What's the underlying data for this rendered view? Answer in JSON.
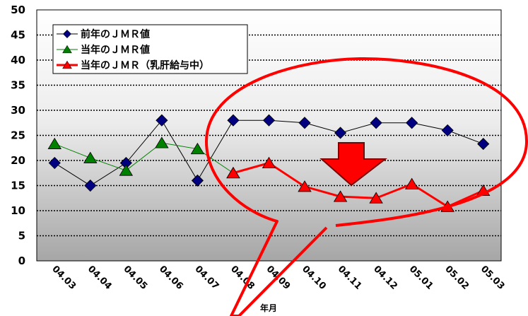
{
  "chart_data": {
    "type": "line",
    "categories": [
      "04.03",
      "04.04",
      "04.05",
      "04.06",
      "04.07",
      "04.08",
      "04.09",
      "04.10",
      "04.11",
      "04.12",
      "05.01",
      "05.02",
      "05.03"
    ],
    "xlabel": "年月",
    "ylabel": "",
    "ylim": [
      0,
      50
    ],
    "yticks": [
      0,
      5,
      10,
      15,
      20,
      25,
      30,
      35,
      40,
      45,
      50
    ],
    "grid": true,
    "legend_position": "top-left",
    "series": [
      {
        "name": "前年のＪＭＲ値",
        "color": "#000080",
        "marker": "diamond",
        "values": [
          19.5,
          15,
          19.5,
          28,
          16,
          28,
          28,
          27.5,
          25.5,
          27.5,
          27.5,
          26,
          23.3
        ]
      },
      {
        "name": "当年のＪＭＲ値",
        "color": "#008000",
        "marker": "triangle",
        "values": [
          23.3,
          20.5,
          18,
          23.5,
          22.3,
          17.5,
          null,
          null,
          null,
          null,
          null,
          null,
          null
        ]
      },
      {
        "name": "当年のＪＭＲ（乳肝給与中）",
        "color": "#ff0000",
        "marker": "triangle",
        "values": [
          null,
          null,
          null,
          null,
          null,
          17.5,
          19.5,
          14.8,
          12.8,
          12.5,
          15.3,
          10.8,
          14
        ]
      }
    ],
    "annotations": [
      {
        "type": "down-arrow",
        "color": "#ff0000"
      },
      {
        "type": "callout-ellipse",
        "color": "#ff0000"
      }
    ]
  }
}
